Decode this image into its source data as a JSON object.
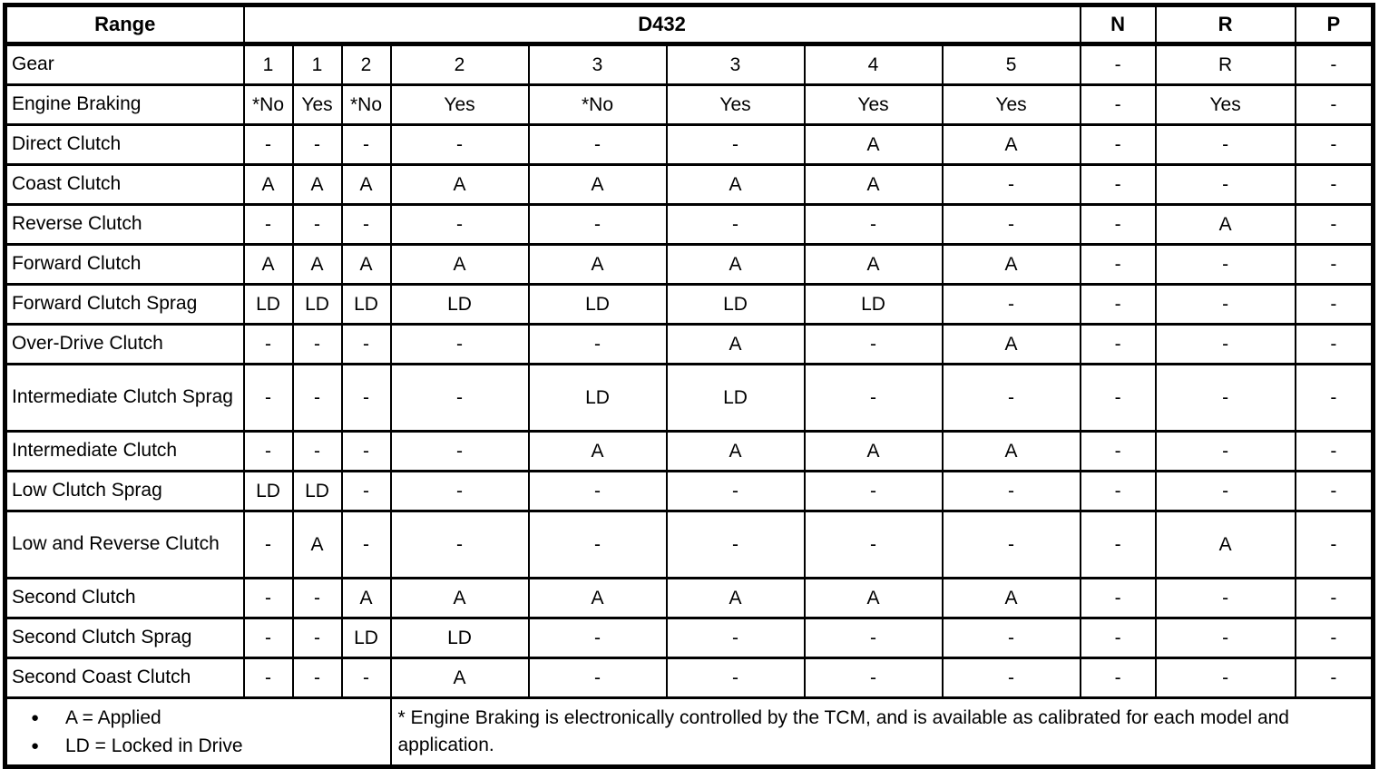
{
  "table": {
    "header": {
      "range": "Range",
      "group": "D432",
      "n": "N",
      "r": "R",
      "p": "P"
    },
    "rows": [
      {
        "label": "Gear",
        "two_line": false,
        "cells": [
          "1",
          "1",
          "2",
          "2",
          "3",
          "3",
          "4",
          "5",
          "-",
          "R",
          "-"
        ]
      },
      {
        "label": "Engine Braking",
        "two_line": false,
        "cells": [
          "*No",
          "Yes",
          "*No",
          "Yes",
          "*No",
          "Yes",
          "Yes",
          "Yes",
          "-",
          "Yes",
          "-"
        ]
      },
      {
        "label": "Direct Clutch",
        "two_line": false,
        "cells": [
          "-",
          "-",
          "-",
          "-",
          "-",
          "-",
          "A",
          "A",
          "-",
          "-",
          "-"
        ]
      },
      {
        "label": "Coast Clutch",
        "two_line": false,
        "cells": [
          "A",
          "A",
          "A",
          "A",
          "A",
          "A",
          "A",
          "-",
          "-",
          "-",
          "-"
        ]
      },
      {
        "label": "Reverse Clutch",
        "two_line": false,
        "cells": [
          "-",
          "-",
          "-",
          "-",
          "-",
          "-",
          "-",
          "-",
          "-",
          "A",
          "-"
        ]
      },
      {
        "label": "Forward Clutch",
        "two_line": false,
        "cells": [
          "A",
          "A",
          "A",
          "A",
          "A",
          "A",
          "A",
          "A",
          "-",
          "-",
          "-"
        ]
      },
      {
        "label": "Forward Clutch Sprag",
        "two_line": false,
        "cells": [
          "LD",
          "LD",
          "LD",
          "LD",
          "LD",
          "LD",
          "LD",
          "-",
          "-",
          "-",
          "-"
        ]
      },
      {
        "label": "Over-Drive Clutch",
        "two_line": false,
        "cells": [
          "-",
          "-",
          "-",
          "-",
          "-",
          "A",
          "-",
          "A",
          "-",
          "-",
          "-"
        ]
      },
      {
        "label": "Intermediate Clutch Sprag",
        "two_line": true,
        "cells": [
          "-",
          "-",
          "-",
          "-",
          "LD",
          "LD",
          "-",
          "-",
          "-",
          "-",
          "-"
        ]
      },
      {
        "label": "Intermediate Clutch",
        "two_line": false,
        "cells": [
          "-",
          "-",
          "-",
          "-",
          "A",
          "A",
          "A",
          "A",
          "-",
          "-",
          "-"
        ]
      },
      {
        "label": "Low Clutch Sprag",
        "two_line": false,
        "cells": [
          "LD",
          "LD",
          "-",
          "-",
          "-",
          "-",
          "-",
          "-",
          "-",
          "-",
          "-"
        ]
      },
      {
        "label": "Low and Reverse Clutch",
        "two_line": true,
        "cells": [
          "-",
          "A",
          "-",
          "-",
          "-",
          "-",
          "-",
          "-",
          "-",
          "A",
          "-"
        ]
      },
      {
        "label": "Second Clutch",
        "two_line": false,
        "cells": [
          "-",
          "-",
          "A",
          "A",
          "A",
          "A",
          "A",
          "A",
          "-",
          "-",
          "-"
        ]
      },
      {
        "label": "Second Clutch Sprag",
        "two_line": false,
        "cells": [
          "-",
          "-",
          "LD",
          "LD",
          "-",
          "-",
          "-",
          "-",
          "-",
          "-",
          "-"
        ]
      },
      {
        "label": "Second Coast Clutch",
        "two_line": false,
        "cells": [
          "-",
          "-",
          "-",
          "A",
          "-",
          "-",
          "-",
          "-",
          "-",
          "-",
          "-"
        ]
      }
    ],
    "legend": [
      "A = Applied",
      "LD = Locked in Drive"
    ],
    "bullet_glyph": "●",
    "footnote": "* Engine Braking is electronically controlled by the TCM, and is available as calibrated for each model and application."
  },
  "colors": {
    "foreground": "#000000",
    "background": "#ffffff"
  }
}
